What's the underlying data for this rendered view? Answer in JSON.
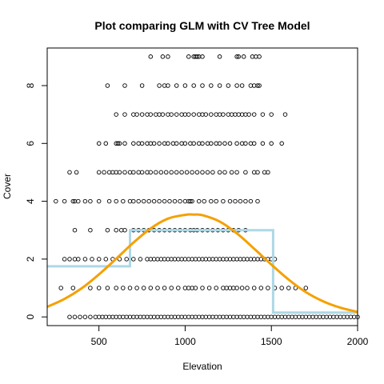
{
  "chart_data": {
    "type": "scatter",
    "title": "Plot comparing GLM with CV Tree Model",
    "xlabel": "Elevation",
    "ylabel": "Cover",
    "xlim": [
      200,
      2000
    ],
    "ylim": [
      -0.3,
      9.3
    ],
    "x_ticks": [
      500,
      1000,
      1500,
      2000
    ],
    "y_ticks": [
      0,
      2,
      4,
      6,
      8
    ],
    "grid": false,
    "colors": {
      "points": "#000000",
      "glm_curve": "#f5a000",
      "tree_steps": "#add8e6"
    },
    "points": [
      {
        "cover": 9,
        "elevation": [
          800,
          870,
          900,
          1020,
          1050,
          1060,
          1070,
          1080,
          1100,
          1200,
          1300,
          1310,
          1340,
          1390,
          1410,
          1430
        ]
      },
      {
        "cover": 8,
        "elevation": [
          550,
          650,
          750,
          850,
          880,
          900,
          950,
          1000,
          1050,
          1100,
          1150,
          1200,
          1250,
          1300,
          1330,
          1380,
          1400,
          1420,
          1430
        ]
      },
      {
        "cover": 7,
        "elevation": [
          600,
          650,
          700,
          720,
          750,
          780,
          800,
          830,
          850,
          870,
          900,
          920,
          950,
          980,
          1000,
          1020,
          1050,
          1080,
          1100,
          1120,
          1150,
          1180,
          1200,
          1220,
          1250,
          1270,
          1290,
          1310,
          1330,
          1350,
          1370,
          1400,
          1450,
          1500,
          1580
        ]
      },
      {
        "cover": 6,
        "elevation": [
          500,
          540,
          600,
          610,
          620,
          650,
          700,
          730,
          750,
          780,
          800,
          820,
          850,
          880,
          900,
          930,
          950,
          980,
          1000,
          1030,
          1050,
          1080,
          1100,
          1130,
          1150,
          1180,
          1200,
          1230,
          1260,
          1300,
          1330,
          1350,
          1380,
          1400,
          1450,
          1500,
          1560
        ]
      },
      {
        "cover": 5,
        "elevation": [
          330,
          370,
          500,
          530,
          560,
          580,
          600,
          620,
          650,
          680,
          700,
          730,
          750,
          780,
          800,
          830,
          860,
          890,
          920,
          950,
          980,
          1010,
          1040,
          1070,
          1100,
          1130,
          1160,
          1200,
          1230,
          1270,
          1300,
          1350,
          1400,
          1420,
          1460,
          1480
        ]
      },
      {
        "cover": 4,
        "elevation": [
          250,
          300,
          350,
          360,
          380,
          420,
          450,
          500,
          560,
          600,
          640,
          680,
          700,
          730,
          760,
          790,
          820,
          850,
          880,
          910,
          940,
          970,
          1000,
          1020,
          1030,
          1040,
          1080,
          1110,
          1150,
          1180,
          1220,
          1260,
          1290,
          1320,
          1350,
          1380,
          1420
        ]
      },
      {
        "cover": 3,
        "elevation": [
          360,
          450,
          550,
          600,
          630,
          650,
          700,
          730,
          760,
          790,
          820,
          850,
          880,
          910,
          940,
          970,
          1000,
          1030,
          1050,
          1070,
          1100,
          1130,
          1160,
          1190,
          1220,
          1250,
          1280,
          1310,
          1350
        ]
      },
      {
        "cover": 2,
        "elevation": [
          300,
          330,
          360,
          380,
          420,
          460,
          500,
          540,
          580,
          620,
          660,
          700,
          740,
          780,
          800,
          820,
          840,
          860,
          880,
          900,
          920,
          940,
          960,
          980,
          1000,
          1020,
          1040,
          1060,
          1080,
          1100,
          1120,
          1140,
          1160,
          1180,
          1200,
          1220,
          1240,
          1260,
          1280,
          1300,
          1320,
          1340,
          1360,
          1380,
          1400,
          1420,
          1440,
          1460,
          1480,
          1500,
          1520
        ]
      },
      {
        "cover": 1,
        "elevation": [
          280,
          350,
          450,
          500,
          550,
          600,
          640,
          680,
          720,
          760,
          800,
          840,
          880,
          920,
          960,
          1000,
          1020,
          1040,
          1060,
          1100,
          1140,
          1180,
          1220,
          1240,
          1260,
          1280,
          1300,
          1330,
          1360,
          1400,
          1440,
          1480,
          1520,
          1560,
          1600,
          1640,
          1700
        ]
      },
      {
        "cover": 0,
        "elevation": [
          330,
          360,
          390,
          420,
          450,
          480,
          500,
          520,
          540,
          560,
          580,
          600,
          620,
          640,
          660,
          680,
          700,
          720,
          740,
          760,
          780,
          800,
          820,
          840,
          860,
          880,
          900,
          920,
          940,
          960,
          980,
          1000,
          1020,
          1040,
          1060,
          1080,
          1100,
          1120,
          1140,
          1160,
          1180,
          1200,
          1220,
          1240,
          1260,
          1280,
          1300,
          1320,
          1340,
          1360,
          1380,
          1400,
          1420,
          1440,
          1460,
          1480,
          1500,
          1520,
          1540,
          1560,
          1580,
          1600,
          1620,
          1640,
          1660,
          1680,
          1700,
          1720,
          1740,
          1760,
          1780,
          1800,
          1820,
          1840,
          1860,
          1880,
          1900,
          1920,
          1940,
          1960,
          1980,
          2000
        ]
      }
    ],
    "glm_curve": {
      "name": "GLM",
      "x": [
        200,
        300,
        400,
        500,
        600,
        700,
        800,
        900,
        1000,
        1050,
        1100,
        1200,
        1300,
        1400,
        1500,
        1600,
        1700,
        1800,
        1900,
        2000
      ],
      "y": [
        0.35,
        0.62,
        0.99,
        1.47,
        2.01,
        2.57,
        3.06,
        3.4,
        3.53,
        3.54,
        3.52,
        3.3,
        2.89,
        2.36,
        1.81,
        1.29,
        0.86,
        0.54,
        0.32,
        0.17
      ]
    },
    "tree_steps": {
      "name": "CV Tree Model",
      "segments": [
        {
          "x_start": 200,
          "x_end": 680,
          "y": 1.75
        },
        {
          "x_start": 680,
          "x_end": 1510,
          "y": 3.0
        },
        {
          "x_start": 1510,
          "x_end": 2000,
          "y": 0.15
        }
      ]
    }
  }
}
